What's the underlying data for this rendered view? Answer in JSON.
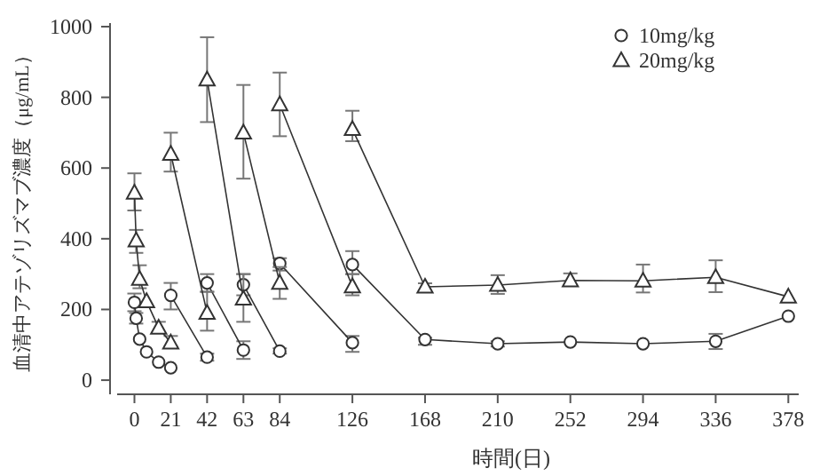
{
  "chart_data": {
    "type": "line",
    "xlabel": "時間(日)",
    "ylabel": "血清中アテゾリズマブ濃度（μg/mL）",
    "xlim": [
      -10,
      384
    ],
    "ylim": [
      -40,
      1010
    ],
    "xticks": [
      0,
      21,
      42,
      63,
      84,
      126,
      168,
      210,
      252,
      294,
      336,
      378
    ],
    "yticks": [
      0,
      200,
      400,
      600,
      800,
      1000
    ],
    "legend": "top right",
    "grid": false,
    "line_style": "solid",
    "x": [
      0,
      1,
      3,
      7,
      14,
      21,
      null,
      21,
      42,
      null,
      42,
      63,
      null,
      63,
      84,
      null,
      84,
      126,
      null,
      126,
      168,
      210,
      252,
      294,
      336,
      378
    ],
    "series": [
      {
        "name": "10mg/kg",
        "color": "#333333",
        "marker": "circle",
        "values": [
          220,
          175,
          116,
          80,
          51,
          35,
          null,
          240,
          65,
          null,
          275,
          85,
          null,
          270,
          82,
          null,
          330,
          106,
          null,
          327,
          115,
          103,
          108,
          103,
          110,
          181
        ],
        "errors": [
          [
            195,
            245
          ],
          [
            160,
            190
          ],
          null,
          null,
          null,
          null,
          null,
          [
            200,
            275
          ],
          [
            55,
            75
          ],
          null,
          [
            250,
            300
          ],
          [
            60,
            110
          ],
          null,
          [
            240,
            300
          ],
          [
            75,
            90
          ],
          null,
          [
            310,
            345
          ],
          [
            80,
            125
          ],
          null,
          [
            300,
            365
          ],
          [
            100,
            120
          ],
          [
            95,
            110
          ],
          null,
          null,
          [
            88,
            131
          ],
          null
        ]
      },
      {
        "name": "20mg/kg",
        "color": "#333333",
        "marker": "triangle",
        "values": [
          530,
          395,
          286,
          223,
          148,
          106,
          null,
          640,
          190,
          null,
          850,
          230,
          null,
          700,
          275,
          null,
          780,
          265,
          null,
          710,
          264,
          269,
          282,
          281,
          291,
          236
        ],
        "errors": [
          [
            480,
            585
          ],
          [
            360,
            425
          ],
          [
            260,
            325
          ],
          null,
          [
            135,
            165
          ],
          [
            95,
            125
          ],
          null,
          [
            590,
            700
          ],
          [
            140,
            250
          ],
          null,
          [
            730,
            970
          ],
          [
            165,
            300
          ],
          null,
          [
            570,
            835
          ],
          [
            230,
            320
          ],
          null,
          [
            690,
            870
          ],
          [
            240,
            300
          ],
          null,
          [
            676,
            762
          ],
          [
            254,
            274
          ],
          [
            244,
            297
          ],
          [
            269,
            302
          ],
          [
            248,
            327
          ],
          [
            249,
            339
          ],
          null
        ]
      }
    ]
  }
}
